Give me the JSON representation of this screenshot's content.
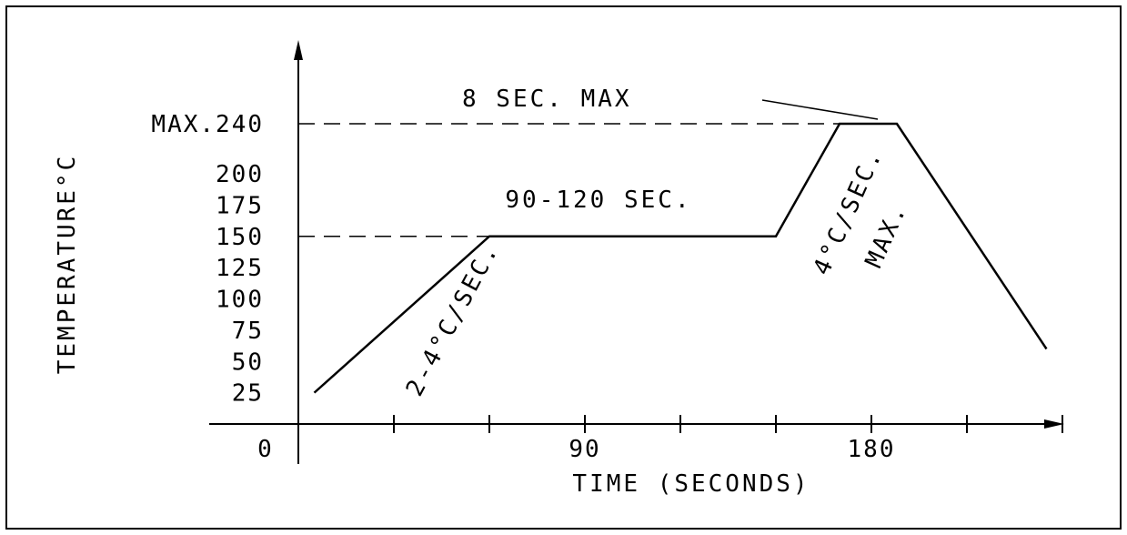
{
  "chart_data": {
    "type": "line",
    "xlabel": "TIME (SECONDS)",
    "ylabel": "TEMPERATURE°C",
    "x_ticks": [
      {
        "value": 0,
        "label": "0"
      },
      {
        "value": 90,
        "label": "90"
      },
      {
        "value": 180,
        "label": "180"
      }
    ],
    "y_ticks": [
      {
        "value": 25,
        "label": "25"
      },
      {
        "value": 50,
        "label": "50"
      },
      {
        "value": 75,
        "label": "75"
      },
      {
        "value": 100,
        "label": "100"
      },
      {
        "value": 125,
        "label": "125"
      },
      {
        "value": 150,
        "label": "150"
      },
      {
        "value": 175,
        "label": "175"
      },
      {
        "value": 200,
        "label": "200"
      },
      {
        "value": 240,
        "label": "MAX.240"
      }
    ],
    "xlim": [
      0,
      240
    ],
    "ylim": [
      0,
      260
    ],
    "series": [
      {
        "x": [
          5,
          60,
          150,
          170,
          188,
          235
        ],
        "y": [
          25,
          150,
          150,
          240,
          240,
          60
        ]
      }
    ],
    "reference_lines": [
      {
        "y": 240,
        "x_end": 170
      },
      {
        "y": 150,
        "x_end": 60
      }
    ],
    "annotations": {
      "ramp_up": "2-4°C/SEC.",
      "soak": "90-120 SEC.",
      "peak_ramp_1": "4°C/SEC.",
      "peak_ramp_2": "MAX.",
      "peak_time": "8 SEC. MAX"
    },
    "grid": false,
    "legend": "none"
  }
}
